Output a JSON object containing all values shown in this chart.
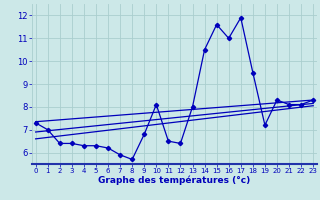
{
  "xlabel": "Graphe des températures (°c)",
  "bg_color": "#cce8e8",
  "grid_color": "#aacece",
  "line_color": "#0000bb",
  "hours": [
    0,
    1,
    2,
    3,
    4,
    5,
    6,
    7,
    8,
    9,
    10,
    11,
    12,
    13,
    14,
    15,
    16,
    17,
    18,
    19,
    20,
    21,
    22,
    23
  ],
  "temp": [
    7.3,
    7.0,
    6.4,
    6.4,
    6.3,
    6.3,
    6.2,
    5.9,
    5.7,
    6.8,
    8.1,
    6.5,
    6.4,
    8.0,
    10.5,
    11.6,
    11.0,
    11.9,
    9.5,
    7.2,
    8.3,
    8.1,
    8.1,
    8.3
  ],
  "trend1_x": [
    0,
    23
  ],
  "trend1_y": [
    7.35,
    8.3
  ],
  "trend2_x": [
    0,
    23
  ],
  "trend2_y": [
    6.9,
    8.15
  ],
  "trend3_x": [
    0,
    23
  ],
  "trend3_y": [
    6.6,
    8.05
  ],
  "xlim": [
    -0.3,
    23.3
  ],
  "ylim": [
    5.5,
    12.5
  ],
  "xticks": [
    0,
    1,
    2,
    3,
    4,
    5,
    6,
    7,
    8,
    9,
    10,
    11,
    12,
    13,
    14,
    15,
    16,
    17,
    18,
    19,
    20,
    21,
    22,
    23
  ],
  "yticks": [
    6,
    7,
    8,
    9,
    10,
    11,
    12
  ]
}
